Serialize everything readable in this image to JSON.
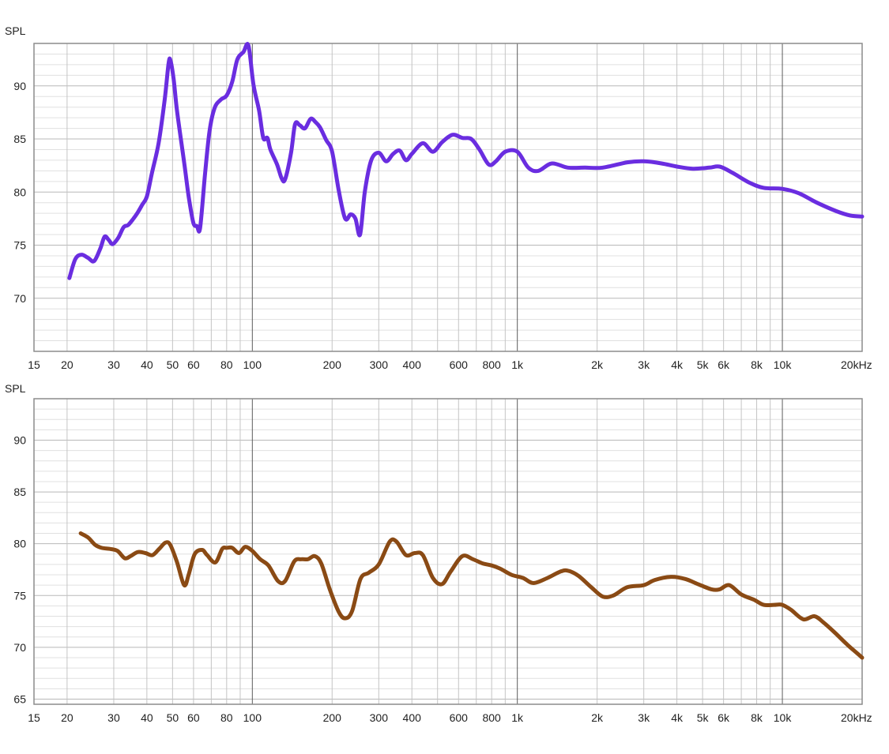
{
  "chart_data": [
    {
      "type": "line",
      "ylabel": "SPL",
      "xlabel": "",
      "x_scale": "log",
      "xlim": [
        15,
        20000
      ],
      "ylim": [
        65,
        94
      ],
      "x_ticks": [
        {
          "value": 15,
          "label": "15"
        },
        {
          "value": 20,
          "label": "20"
        },
        {
          "value": 30,
          "label": "30"
        },
        {
          "value": 40,
          "label": "40"
        },
        {
          "value": 50,
          "label": "50"
        },
        {
          "value": 60,
          "label": "60"
        },
        {
          "value": 80,
          "label": "80"
        },
        {
          "value": 100,
          "label": "100"
        },
        {
          "value": 200,
          "label": "200"
        },
        {
          "value": 300,
          "label": "300"
        },
        {
          "value": 400,
          "label": "400"
        },
        {
          "value": 600,
          "label": "600"
        },
        {
          "value": 800,
          "label": "800"
        },
        {
          "value": 1000,
          "label": "1k"
        },
        {
          "value": 2000,
          "label": "2k"
        },
        {
          "value": 3000,
          "label": "3k"
        },
        {
          "value": 4000,
          "label": "4k"
        },
        {
          "value": 5000,
          "label": "5k"
        },
        {
          "value": 6000,
          "label": "6k"
        },
        {
          "value": 8000,
          "label": "8k"
        },
        {
          "value": 10000,
          "label": "10k"
        },
        {
          "value": 20000,
          "label": "20kHz"
        }
      ],
      "y_ticks": [
        {
          "value": 70,
          "label": "70"
        },
        {
          "value": 75,
          "label": "75"
        },
        {
          "value": 80,
          "label": "80"
        },
        {
          "value": 85,
          "label": "85"
        },
        {
          "value": 90,
          "label": "90"
        }
      ],
      "grid": true,
      "series": [
        {
          "color": "#6a2de0",
          "points": [
            [
              20.4,
              71.9
            ],
            [
              21.5,
              73.7
            ],
            [
              22.7,
              74.1
            ],
            [
              24,
              73.8
            ],
            [
              25.3,
              73.5
            ],
            [
              26.7,
              74.7
            ],
            [
              27.7,
              75.8
            ],
            [
              28.7,
              75.5
            ],
            [
              29.7,
              75.1
            ],
            [
              31.2,
              75.7
            ],
            [
              32.7,
              76.7
            ],
            [
              34,
              76.9
            ],
            [
              35.6,
              77.5
            ],
            [
              37,
              78.1
            ],
            [
              38.4,
              78.8
            ],
            [
              40,
              79.6
            ],
            [
              41.8,
              81.8
            ],
            [
              44.3,
              84.6
            ],
            [
              46.7,
              88.7
            ],
            [
              48.3,
              92.1
            ],
            [
              49.1,
              92.4
            ],
            [
              50.5,
              90.6
            ],
            [
              52,
              87.6
            ],
            [
              55.3,
              82.8
            ],
            [
              57.5,
              79.6
            ],
            [
              59.9,
              77.1
            ],
            [
              61.8,
              76.8
            ],
            [
              63.5,
              76.6
            ],
            [
              66.2,
              81.5
            ],
            [
              68.9,
              85.7
            ],
            [
              72,
              87.9
            ],
            [
              76,
              88.7
            ],
            [
              80,
              89.1
            ],
            [
              84,
              90.4
            ],
            [
              87.8,
              92.5
            ],
            [
              92.6,
              93.2
            ],
            [
              96.7,
              93.8
            ],
            [
              101,
              90.1
            ],
            [
              106,
              87.7
            ],
            [
              110,
              85.1
            ],
            [
              114,
              85.1
            ],
            [
              117,
              84
            ],
            [
              124,
              82.6
            ],
            [
              129,
              81.3
            ],
            [
              133,
              81.2
            ],
            [
              140,
              83.7
            ],
            [
              145,
              86.4
            ],
            [
              151,
              86.3
            ],
            [
              158,
              86
            ],
            [
              166,
              86.9
            ],
            [
              173,
              86.6
            ],
            [
              180,
              86.1
            ],
            [
              190,
              84.9
            ],
            [
              200,
              83.8
            ],
            [
              212,
              80.1
            ],
            [
              224,
              77.5
            ],
            [
              235,
              77.9
            ],
            [
              245,
              77.5
            ],
            [
              255,
              76
            ],
            [
              266,
              80.1
            ],
            [
              281,
              83
            ],
            [
              300,
              83.7
            ],
            [
              320,
              82.9
            ],
            [
              340,
              83.6
            ],
            [
              360,
              83.9
            ],
            [
              380,
              83
            ],
            [
              400,
              83.6
            ],
            [
              440,
              84.6
            ],
            [
              480,
              83.8
            ],
            [
              520,
              84.7
            ],
            [
              570,
              85.4
            ],
            [
              620,
              85.1
            ],
            [
              670,
              85
            ],
            [
              720,
              84
            ],
            [
              780,
              82.6
            ],
            [
              830,
              82.9
            ],
            [
              900,
              83.8
            ],
            [
              1000,
              83.8
            ],
            [
              1100,
              82.3
            ],
            [
              1200,
              82
            ],
            [
              1350,
              82.7
            ],
            [
              1550,
              82.3
            ],
            [
              1800,
              82.3
            ],
            [
              2100,
              82.3
            ],
            [
              2600,
              82.8
            ],
            [
              3000,
              82.9
            ],
            [
              3500,
              82.7
            ],
            [
              4000,
              82.4
            ],
            [
              4600,
              82.2
            ],
            [
              5300,
              82.3
            ],
            [
              5800,
              82.4
            ],
            [
              6500,
              81.8
            ],
            [
              7500,
              80.9
            ],
            [
              8500,
              80.4
            ],
            [
              10000,
              80.3
            ],
            [
              11500,
              79.9
            ],
            [
              13500,
              79
            ],
            [
              16000,
              78.2
            ],
            [
              18000,
              77.8
            ],
            [
              20000,
              77.7
            ]
          ]
        }
      ]
    },
    {
      "type": "line",
      "ylabel": "SPL",
      "xlabel": "",
      "x_scale": "log",
      "xlim": [
        15,
        20000
      ],
      "ylim": [
        64.5,
        94
      ],
      "x_ticks": [
        {
          "value": 15,
          "label": "15"
        },
        {
          "value": 20,
          "label": "20"
        },
        {
          "value": 30,
          "label": "30"
        },
        {
          "value": 40,
          "label": "40"
        },
        {
          "value": 50,
          "label": "50"
        },
        {
          "value": 60,
          "label": "60"
        },
        {
          "value": 80,
          "label": "80"
        },
        {
          "value": 100,
          "label": "100"
        },
        {
          "value": 200,
          "label": "200"
        },
        {
          "value": 300,
          "label": "300"
        },
        {
          "value": 400,
          "label": "400"
        },
        {
          "value": 600,
          "label": "600"
        },
        {
          "value": 800,
          "label": "800"
        },
        {
          "value": 1000,
          "label": "1k"
        },
        {
          "value": 2000,
          "label": "2k"
        },
        {
          "value": 3000,
          "label": "3k"
        },
        {
          "value": 4000,
          "label": "4k"
        },
        {
          "value": 5000,
          "label": "5k"
        },
        {
          "value": 6000,
          "label": "6k"
        },
        {
          "value": 8000,
          "label": "8k"
        },
        {
          "value": 10000,
          "label": "10k"
        },
        {
          "value": 20000,
          "label": "20kHz"
        }
      ],
      "y_ticks": [
        {
          "value": 65,
          "label": "65"
        },
        {
          "value": 70,
          "label": "70"
        },
        {
          "value": 75,
          "label": "75"
        },
        {
          "value": 80,
          "label": "80"
        },
        {
          "value": 85,
          "label": "85"
        },
        {
          "value": 90,
          "label": "90"
        }
      ],
      "grid": true,
      "series": [
        {
          "color": "#8a4a14",
          "points": [
            [
              22.5,
              81
            ],
            [
              24,
              80.6
            ],
            [
              25.5,
              79.9
            ],
            [
              27,
              79.6
            ],
            [
              29,
              79.5
            ],
            [
              31,
              79.3
            ],
            [
              33,
              78.6
            ],
            [
              34.7,
              78.8
            ],
            [
              37,
              79.2
            ],
            [
              39.5,
              79.1
            ],
            [
              42,
              78.9
            ],
            [
              44.5,
              79.5
            ],
            [
              47,
              80.1
            ],
            [
              49,
              79.9
            ],
            [
              52,
              78.2
            ],
            [
              55.3,
              76
            ],
            [
              57.5,
              77
            ],
            [
              60.6,
              79
            ],
            [
              64.7,
              79.4
            ],
            [
              67.5,
              78.9
            ],
            [
              72.5,
              78.2
            ],
            [
              77,
              79.5
            ],
            [
              80,
              79.6
            ],
            [
              84,
              79.6
            ],
            [
              89,
              79.1
            ],
            [
              94,
              79.7
            ],
            [
              100,
              79.3
            ],
            [
              107,
              78.5
            ],
            [
              115,
              77.9
            ],
            [
              125,
              76.4
            ],
            [
              133,
              76.4
            ],
            [
              144,
              78.3
            ],
            [
              153,
              78.5
            ],
            [
              162,
              78.5
            ],
            [
              172,
              78.8
            ],
            [
              182,
              78.1
            ],
            [
              196,
              75.6
            ],
            [
              212,
              73.4
            ],
            [
              224,
              72.8
            ],
            [
              238,
              73.5
            ],
            [
              256,
              76.6
            ],
            [
              275,
              77.2
            ],
            [
              300,
              78
            ],
            [
              330,
              80.2
            ],
            [
              350,
              80.2
            ],
            [
              380,
              78.9
            ],
            [
              410,
              79.1
            ],
            [
              440,
              78.9
            ],
            [
              480,
              76.7
            ],
            [
              520,
              76.1
            ],
            [
              560,
              77.3
            ],
            [
              620,
              78.8
            ],
            [
              680,
              78.5
            ],
            [
              740,
              78.1
            ],
            [
              800,
              77.9
            ],
            [
              860,
              77.6
            ],
            [
              950,
              77
            ],
            [
              1050,
              76.7
            ],
            [
              1150,
              76.2
            ],
            [
              1300,
              76.7
            ],
            [
              1450,
              77.3
            ],
            [
              1550,
              77.4
            ],
            [
              1700,
              76.9
            ],
            [
              1900,
              75.8
            ],
            [
              2100,
              74.9
            ],
            [
              2300,
              75
            ],
            [
              2600,
              75.8
            ],
            [
              3000,
              76
            ],
            [
              3300,
              76.5
            ],
            [
              3800,
              76.8
            ],
            [
              4300,
              76.6
            ],
            [
              4800,
              76.1
            ],
            [
              5400,
              75.6
            ],
            [
              5800,
              75.6
            ],
            [
              6300,
              76
            ],
            [
              7000,
              75.1
            ],
            [
              7800,
              74.6
            ],
            [
              8500,
              74.1
            ],
            [
              9300,
              74.1
            ],
            [
              10000,
              74.1
            ],
            [
              10800,
              73.6
            ],
            [
              12000,
              72.7
            ],
            [
              13200,
              73
            ],
            [
              14300,
              72.4
            ],
            [
              15800,
              71.4
            ],
            [
              17500,
              70.3
            ],
            [
              19000,
              69.5
            ],
            [
              20000,
              69
            ]
          ]
        }
      ]
    }
  ]
}
